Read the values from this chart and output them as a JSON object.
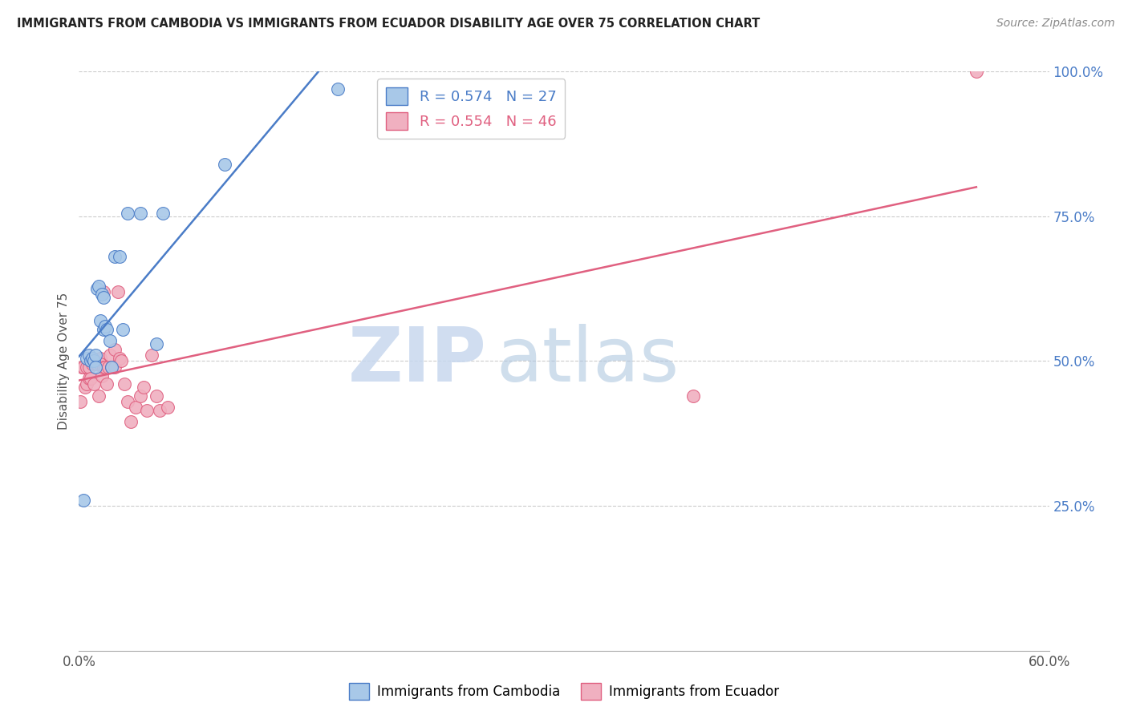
{
  "title": "IMMIGRANTS FROM CAMBODIA VS IMMIGRANTS FROM ECUADOR DISABILITY AGE OVER 75 CORRELATION CHART",
  "source": "Source: ZipAtlas.com",
  "xlabel": "",
  "ylabel": "Disability Age Over 75",
  "xlim": [
    0,
    0.6
  ],
  "ylim": [
    0,
    1.0
  ],
  "xticks": [
    0.0,
    0.1,
    0.2,
    0.3,
    0.4,
    0.5,
    0.6
  ],
  "xticklabels": [
    "0.0%",
    "",
    "",
    "",
    "",
    "",
    "60.0%"
  ],
  "ytick_positions": [
    0.0,
    0.25,
    0.5,
    0.75,
    1.0
  ],
  "yticklabels_right": [
    "",
    "25.0%",
    "50.0%",
    "75.0%",
    "100.0%"
  ],
  "R_cambodia": 0.574,
  "N_cambodia": 27,
  "R_ecuador": 0.554,
  "N_ecuador": 46,
  "color_cambodia": "#a8c8e8",
  "color_ecuador": "#f0b0c0",
  "line_color_cambodia": "#4a7cc7",
  "line_color_ecuador": "#e06080",
  "watermark_zip": "ZIP",
  "watermark_atlas": "atlas",
  "cambodia_x": [
    0.003,
    0.005,
    0.006,
    0.007,
    0.008,
    0.009,
    0.01,
    0.01,
    0.011,
    0.012,
    0.013,
    0.014,
    0.015,
    0.015,
    0.016,
    0.017,
    0.019,
    0.02,
    0.022,
    0.025,
    0.027,
    0.03,
    0.038,
    0.048,
    0.052,
    0.09,
    0.16
  ],
  "cambodia_y": [
    0.26,
    0.505,
    0.51,
    0.5,
    0.505,
    0.5,
    0.51,
    0.49,
    0.625,
    0.63,
    0.57,
    0.615,
    0.61,
    0.555,
    0.56,
    0.555,
    0.535,
    0.49,
    0.68,
    0.68,
    0.555,
    0.755,
    0.755,
    0.53,
    0.755,
    0.84,
    0.97
  ],
  "ecuador_x": [
    0.001,
    0.002,
    0.003,
    0.004,
    0.005,
    0.005,
    0.006,
    0.006,
    0.007,
    0.007,
    0.007,
    0.008,
    0.008,
    0.009,
    0.01,
    0.01,
    0.011,
    0.012,
    0.013,
    0.013,
    0.014,
    0.015,
    0.015,
    0.016,
    0.017,
    0.018,
    0.019,
    0.02,
    0.022,
    0.022,
    0.024,
    0.025,
    0.026,
    0.028,
    0.03,
    0.032,
    0.035,
    0.038,
    0.04,
    0.042,
    0.045,
    0.048,
    0.05,
    0.055,
    0.38,
    0.555
  ],
  "ecuador_y": [
    0.43,
    0.49,
    0.49,
    0.455,
    0.46,
    0.49,
    0.47,
    0.49,
    0.47,
    0.5,
    0.505,
    0.495,
    0.5,
    0.46,
    0.5,
    0.495,
    0.495,
    0.44,
    0.505,
    0.495,
    0.475,
    0.49,
    0.62,
    0.49,
    0.46,
    0.49,
    0.51,
    0.49,
    0.52,
    0.49,
    0.62,
    0.505,
    0.5,
    0.46,
    0.43,
    0.395,
    0.42,
    0.44,
    0.455,
    0.415,
    0.51,
    0.44,
    0.415,
    0.42,
    0.44,
    1.0
  ],
  "cam_line_x": [
    0.0,
    0.16
  ],
  "ecu_line_x": [
    0.0,
    0.555
  ]
}
